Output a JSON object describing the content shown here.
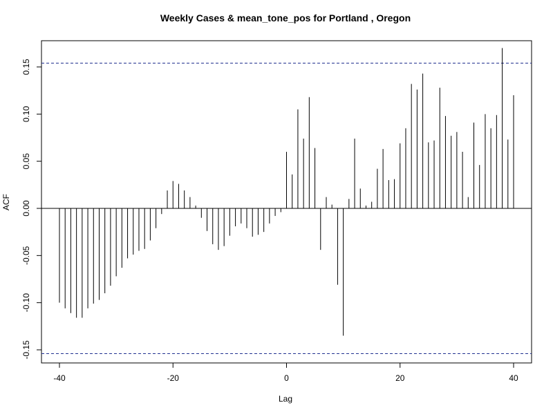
{
  "chart_data": {
    "type": "bar",
    "title": "Weekly Cases & mean_tone_pos for Portland , Oregon",
    "xlabel": "Lag",
    "ylabel": "ACF",
    "xlim": [
      -40,
      40
    ],
    "ylim": [
      -0.165,
      0.18
    ],
    "x_ticks": [
      -40,
      -20,
      0,
      20,
      40
    ],
    "y_ticks": [
      -0.15,
      -0.1,
      -0.05,
      0.0,
      0.05,
      0.1,
      0.15
    ],
    "y_tick_labels": [
      "-0.15",
      "-0.10",
      "-0.05",
      "0.00",
      "0.05",
      "0.10",
      "0.15"
    ],
    "confidence_limits": [
      0.154,
      -0.154
    ],
    "grid": false,
    "x": [
      -40,
      -39,
      -38,
      -37,
      -36,
      -35,
      -34,
      -33,
      -32,
      -31,
      -30,
      -29,
      -28,
      -27,
      -26,
      -25,
      -24,
      -23,
      -22,
      -21,
      -20,
      -19,
      -18,
      -17,
      -16,
      -15,
      -14,
      -13,
      -12,
      -11,
      -10,
      -9,
      -8,
      -7,
      -6,
      -5,
      -4,
      -3,
      -2,
      -1,
      0,
      1,
      2,
      3,
      4,
      5,
      6,
      7,
      8,
      9,
      10,
      11,
      12,
      13,
      14,
      15,
      16,
      17,
      18,
      19,
      20,
      21,
      22,
      23,
      24,
      25,
      26,
      27,
      28,
      29,
      30,
      31,
      32,
      33,
      34,
      35,
      36,
      37,
      38,
      39,
      40
    ],
    "values": [
      -0.1,
      -0.106,
      -0.111,
      -0.116,
      -0.116,
      -0.106,
      -0.101,
      -0.097,
      -0.09,
      -0.082,
      -0.072,
      -0.063,
      -0.053,
      -0.049,
      -0.045,
      -0.043,
      -0.034,
      -0.021,
      -0.006,
      0.019,
      0.029,
      0.026,
      0.019,
      0.012,
      0.003,
      -0.01,
      -0.024,
      -0.038,
      -0.044,
      -0.04,
      -0.029,
      -0.019,
      -0.016,
      -0.021,
      -0.03,
      -0.028,
      -0.025,
      -0.016,
      -0.008,
      -0.004,
      0.06,
      0.036,
      0.105,
      0.074,
      0.118,
      0.064,
      -0.044,
      0.012,
      0.004,
      -0.081,
      -0.135,
      0.01,
      0.074,
      0.021,
      0.003,
      0.007,
      0.042,
      0.063,
      0.03,
      0.031,
      0.069,
      0.085,
      0.132,
      0.126,
      0.143,
      0.07,
      0.072,
      0.128,
      0.098,
      0.077,
      0.081,
      0.06,
      0.012,
      0.091,
      0.046,
      0.1,
      0.085,
      0.099,
      0.17,
      0.073,
      0.12
    ]
  }
}
